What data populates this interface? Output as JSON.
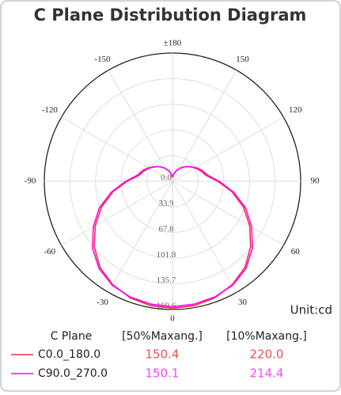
{
  "chart_data": {
    "type": "polar",
    "title": "C Plane Distribution Diagram",
    "unit_label": "Unit:cd",
    "x": [
      -180,
      -170,
      -160,
      -150,
      -140,
      -130,
      -120,
      -110,
      -100,
      -90,
      -80,
      -70,
      -60,
      -50,
      -40,
      -30,
      -20,
      -10,
      0,
      10,
      20,
      30,
      40,
      50,
      60,
      70,
      80,
      90,
      100,
      110,
      120,
      130,
      140,
      150,
      160,
      170,
      180
    ],
    "series": [
      {
        "name": "C0.0_180.0",
        "color": "#f03434",
        "values": [
          5,
          10,
          15,
          20,
          25,
          30,
          35,
          40,
          45,
          60,
          80,
          100,
          118,
          135,
          149,
          158,
          164,
          167,
          168,
          167,
          164,
          158,
          149,
          135,
          118,
          100,
          80,
          60,
          45,
          40,
          35,
          30,
          25,
          20,
          15,
          10,
          5
        ],
        "beam_angles": [
          150.4,
          220.0
        ],
        "beam_angle_labels": [
          "150.4",
          "220.0"
        ],
        "label_color": "#f05050"
      },
      {
        "name": "C90.0_270.0",
        "color": "#ff00ff",
        "values": [
          6,
          10,
          15,
          20,
          25,
          30,
          36,
          42,
          47,
          62,
          82,
          103,
          121,
          138,
          151,
          159,
          163,
          165,
          166,
          165,
          163,
          159,
          151,
          138,
          121,
          103,
          82,
          62,
          47,
          42,
          36,
          30,
          25,
          20,
          15,
          10,
          6
        ],
        "beam_angles": [
          150.1,
          214.4
        ],
        "beam_angle_labels": [
          "150.1",
          "214.4"
        ],
        "label_color": "#ff44ff"
      }
    ],
    "table_headers": [
      "C Plane",
      "[50%Maxang.]",
      "[10%Maxang.]"
    ],
    "rlim": [
      0,
      169.6
    ],
    "rticks": [
      {
        "value": 0,
        "label": "0.0"
      },
      33.9,
      67.8,
      101.8,
      135.7,
      169.6
    ],
    "xticks": [
      {
        "value": 180,
        "label": "±180"
      },
      -150,
      150,
      -120,
      120,
      -90,
      90,
      -60,
      60,
      -30,
      30,
      0
    ],
    "grid": true
  }
}
